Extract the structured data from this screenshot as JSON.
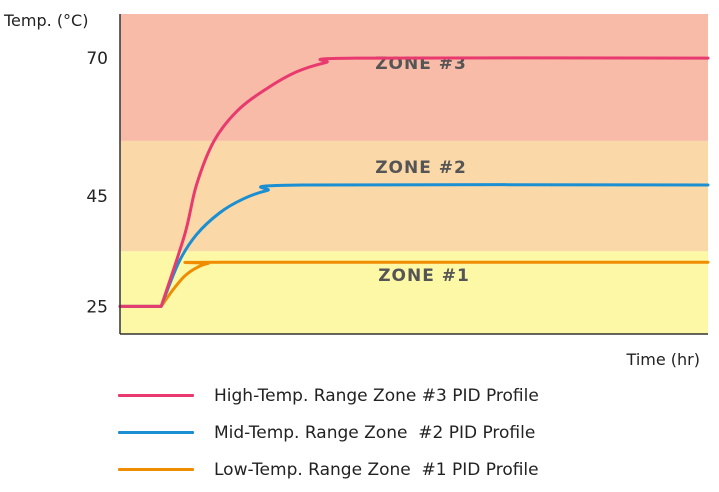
{
  "chart_data": {
    "type": "line",
    "ylabel": "Temp. (°C)",
    "xlabel": "Time (hr)",
    "ylim": [
      20,
      78
    ],
    "xlim": [
      0,
      100
    ],
    "yticks": [
      25,
      45,
      70
    ],
    "grid": false,
    "zones": [
      {
        "label": "ZONE #1",
        "from": 20,
        "to": 35,
        "color": "#fdf8a6"
      },
      {
        "label": "ZONE #2",
        "from": 35,
        "to": 55,
        "color": "#fbd8a8"
      },
      {
        "label": "ZONE #3",
        "from": 55,
        "to": 78,
        "color": "#f8bba8"
      }
    ],
    "series": [
      {
        "name": "High-Temp. Range Zone #3 PID Profile",
        "color": "#e83a6f",
        "x": [
          0,
          7,
          11,
          13,
          16,
          20,
          25,
          30,
          35,
          40,
          100
        ],
        "y": [
          25,
          25,
          38,
          47,
          55,
          60.5,
          64.5,
          67.5,
          69.2,
          70,
          70
        ]
      },
      {
        "name": "Mid-Temp. Range Zone #2 PID Profile",
        "color": "#1b8fd2",
        "x": [
          0,
          7,
          10,
          13,
          17,
          21,
          25,
          31,
          100
        ],
        "y": [
          25,
          25,
          33,
          38,
          42,
          44.5,
          46,
          47,
          47
        ]
      },
      {
        "name": "Low-Temp. Range Zone #1 PID Profile",
        "color": "#f08c00",
        "x": [
          0,
          7,
          9,
          11,
          13,
          15,
          18,
          100
        ],
        "y": [
          25,
          25,
          28,
          30.5,
          32,
          32.8,
          33,
          33
        ]
      }
    ]
  },
  "legend": [
    {
      "label": "High-Temp. Range Zone #3 PID Profile",
      "color": "#e83a6f"
    },
    {
      "label": "Mid-Temp. Range Zone  #2 PID Profile",
      "color": "#1b8fd2"
    },
    {
      "label": "Low-Temp. Range Zone  #1 PID Profile",
      "color": "#f08c00"
    }
  ]
}
